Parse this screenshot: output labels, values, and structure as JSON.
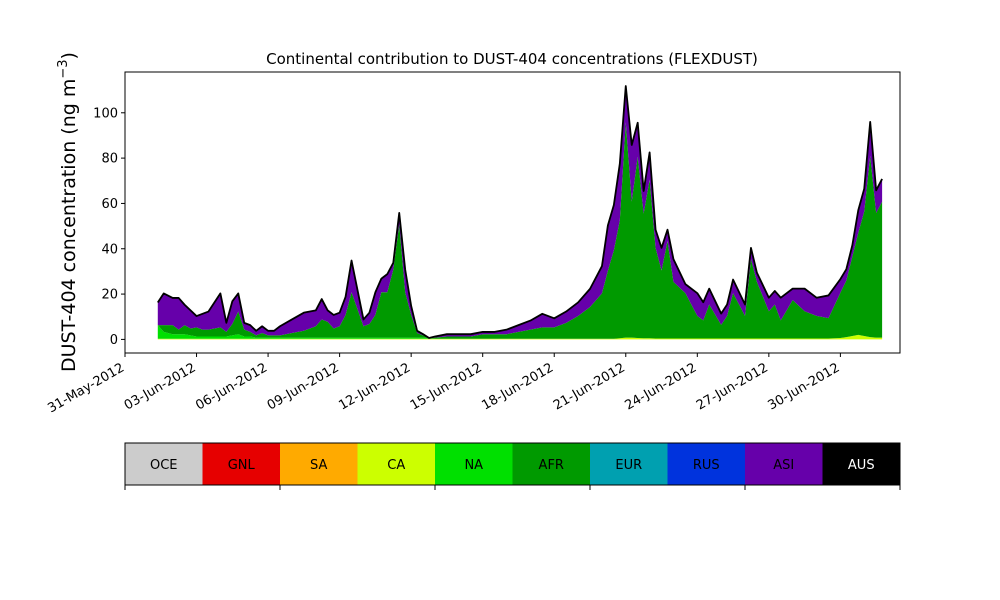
{
  "chart_data": {
    "type": "area",
    "title": "Continental contribution to DUST-404 concentrations (FLEXDUST)",
    "ylabel": "DUST-404 concentration (ng m",
    "ylabel_exponent": "−3",
    "ylabel_close": ")",
    "xlabel": "",
    "x_range": [
      "2012-05-31T00:00",
      "2012-07-02T12:00"
    ],
    "ylim": [
      -6,
      118
    ],
    "yticks": [
      0,
      20,
      40,
      60,
      80,
      100
    ],
    "x_ticks": [
      {
        "label": "31-May-2012",
        "date": "2012-05-31"
      },
      {
        "label": "03-Jun-2012",
        "date": "2012-06-03"
      },
      {
        "label": "06-Jun-2012",
        "date": "2012-06-06"
      },
      {
        "label": "09-Jun-2012",
        "date": "2012-06-09"
      },
      {
        "label": "12-Jun-2012",
        "date": "2012-06-12"
      },
      {
        "label": "15-Jun-2012",
        "date": "2012-06-15"
      },
      {
        "label": "18-Jun-2012",
        "date": "2012-06-18"
      },
      {
        "label": "21-Jun-2012",
        "date": "2012-06-21"
      },
      {
        "label": "24-Jun-2012",
        "date": "2012-06-24"
      },
      {
        "label": "27-Jun-2012",
        "date": "2012-06-27"
      },
      {
        "label": "30-Jun-2012",
        "date": "2012-06-30"
      }
    ],
    "grid": false,
    "stacking": "cumulative (bottom to top: OCE, GNL, SA, CA, NA, AFR, EUR, RUS, ASI, AUS)",
    "x": [
      "2012-06-01T09:00",
      "2012-06-01T15:00",
      "2012-06-02T00:00",
      "2012-06-02T06:00",
      "2012-06-02T12:00",
      "2012-06-02T18:00",
      "2012-06-03T00:00",
      "2012-06-03T06:00",
      "2012-06-03T12:00",
      "2012-06-04T00:00",
      "2012-06-04T06:00",
      "2012-06-04T12:00",
      "2012-06-04T18:00",
      "2012-06-05T00:00",
      "2012-06-05T06:00",
      "2012-06-05T12:00",
      "2012-06-05T18:00",
      "2012-06-06T00:00",
      "2012-06-06T06:00",
      "2012-06-06T12:00",
      "2012-06-07T00:00",
      "2012-06-07T12:00",
      "2012-06-08T00:00",
      "2012-06-08T06:00",
      "2012-06-08T12:00",
      "2012-06-08T18:00",
      "2012-06-09T00:00",
      "2012-06-09T06:00",
      "2012-06-09T12:00",
      "2012-06-10T00:00",
      "2012-06-10T06:00",
      "2012-06-10T12:00",
      "2012-06-10T18:00",
      "2012-06-11T00:00",
      "2012-06-11T06:00",
      "2012-06-11T12:00",
      "2012-06-11T18:00",
      "2012-06-12T00:00",
      "2012-06-12T06:00",
      "2012-06-12T12:00",
      "2012-06-12T18:00",
      "2012-06-13T00:00",
      "2012-06-13T12:00",
      "2012-06-14T00:00",
      "2012-06-14T12:00",
      "2012-06-15T00:00",
      "2012-06-15T12:00",
      "2012-06-16T00:00",
      "2012-06-16T12:00",
      "2012-06-17T00:00",
      "2012-06-17T12:00",
      "2012-06-18T00:00",
      "2012-06-18T12:00",
      "2012-06-19T00:00",
      "2012-06-19T12:00",
      "2012-06-19T18:00",
      "2012-06-20T00:00",
      "2012-06-20T06:00",
      "2012-06-20T12:00",
      "2012-06-20T18:00",
      "2012-06-21T00:00",
      "2012-06-21T06:00",
      "2012-06-21T12:00",
      "2012-06-21T18:00",
      "2012-06-22T00:00",
      "2012-06-22T06:00",
      "2012-06-22T12:00",
      "2012-06-22T18:00",
      "2012-06-23T00:00",
      "2012-06-23T12:00",
      "2012-06-24T00:00",
      "2012-06-24T06:00",
      "2012-06-24T12:00",
      "2012-06-25T00:00",
      "2012-06-25T06:00",
      "2012-06-25T12:00",
      "2012-06-26T00:00",
      "2012-06-26T06:00",
      "2012-06-26T12:00",
      "2012-06-27T00:00",
      "2012-06-27T06:00",
      "2012-06-27T12:00",
      "2012-06-28T00:00",
      "2012-06-28T12:00",
      "2012-06-29T00:00",
      "2012-06-29T12:00",
      "2012-06-30T00:00",
      "2012-06-30T06:00",
      "2012-06-30T12:00",
      "2012-06-30T18:00",
      "2012-07-01T00:00",
      "2012-07-01T06:00",
      "2012-07-01T12:00",
      "2012-07-01T18:00"
    ],
    "series": [
      {
        "name": "OCE",
        "color": "#cccccc",
        "values": [
          0,
          0,
          0,
          0,
          0,
          0,
          0,
          0,
          0,
          0,
          0,
          0,
          0,
          0,
          0,
          0,
          0,
          0,
          0,
          0,
          0,
          0,
          0,
          0,
          0,
          0,
          0,
          0,
          0,
          0,
          0,
          0,
          0,
          0,
          0,
          0,
          0,
          0,
          0,
          0,
          0,
          0,
          0,
          0,
          0,
          0,
          0,
          0,
          0,
          0,
          0,
          0,
          0,
          0,
          0,
          0,
          0,
          0,
          0,
          0,
          0,
          0,
          0,
          0,
          0,
          0,
          0,
          0,
          0,
          0,
          0,
          0,
          0,
          0,
          0,
          0,
          0,
          0,
          0,
          0,
          0,
          0,
          0,
          0,
          0,
          0,
          0,
          0,
          0,
          0,
          0,
          0,
          0,
          0
        ]
      },
      {
        "name": "GNL",
        "color": "#e60000",
        "values": [
          0,
          0,
          0,
          0,
          0,
          0,
          0,
          0,
          0,
          0,
          0,
          0,
          0,
          0,
          0,
          0,
          0,
          0,
          0,
          0,
          0,
          0,
          0,
          0,
          0,
          0,
          0,
          0,
          0,
          0,
          0,
          0,
          0,
          0,
          0,
          0,
          0,
          0,
          0,
          0,
          0,
          0,
          0,
          0,
          0,
          0,
          0,
          0,
          0,
          0,
          0,
          0,
          0,
          0,
          0,
          0,
          0,
          0,
          0,
          0,
          0,
          0,
          0,
          0,
          0,
          0,
          0,
          0,
          0,
          0,
          0,
          0,
          0,
          0,
          0,
          0,
          0,
          0,
          0,
          0,
          0,
          0,
          0,
          0,
          0,
          0,
          0,
          0,
          0,
          0,
          0,
          0,
          0,
          0
        ]
      },
      {
        "name": "SA",
        "color": "#ffaa00",
        "values": [
          0,
          0,
          0,
          0,
          0,
          0,
          0,
          0,
          0,
          0,
          0,
          0,
          0,
          0,
          0,
          0,
          0,
          0,
          0,
          0,
          0,
          0,
          0,
          0,
          0,
          0,
          0,
          0,
          0,
          0,
          0,
          0,
          0,
          0,
          0,
          0,
          0,
          0,
          0,
          0,
          0,
          0,
          0,
          0,
          0,
          0,
          0,
          0,
          0,
          0,
          0,
          0,
          0,
          0,
          0,
          0,
          0,
          0,
          0,
          0,
          0,
          0,
          0,
          0,
          0,
          0,
          0,
          0,
          0,
          0,
          0,
          0,
          0,
          0,
          0,
          0,
          0,
          0,
          0,
          0,
          0,
          0,
          0,
          0,
          0,
          0,
          0,
          0,
          0,
          0,
          0,
          0,
          0,
          0
        ]
      },
      {
        "name": "CA",
        "color": "#ccff00",
        "values": [
          0.3,
          0.3,
          0.3,
          0.3,
          0.3,
          0.3,
          0.3,
          0.3,
          0.3,
          0.3,
          0.3,
          0.3,
          0.3,
          0.3,
          0.3,
          0.3,
          0.3,
          0.3,
          0.3,
          0.3,
          0.3,
          0.3,
          0.3,
          0.3,
          0.3,
          0.3,
          0.3,
          0.3,
          0.3,
          0.3,
          0.3,
          0.3,
          0.3,
          0.3,
          0.3,
          0.3,
          0.3,
          0.3,
          0.3,
          0.3,
          0.3,
          0.3,
          0.3,
          0.3,
          0.3,
          0.3,
          0.3,
          0.3,
          0.3,
          0.3,
          0.3,
          0.3,
          0.3,
          0.3,
          0.3,
          0.3,
          0.3,
          0.3,
          0.3,
          0.5,
          0.8,
          0.8,
          0.6,
          0.5,
          0.5,
          0.4,
          0.4,
          0.4,
          0.4,
          0.4,
          0.4,
          0.4,
          0.4,
          0.4,
          0.4,
          0.4,
          0.4,
          0.4,
          0.4,
          0.4,
          0.4,
          0.4,
          0.4,
          0.4,
          0.4,
          0.4,
          0.6,
          1.0,
          1.5,
          2.0,
          1.5,
          1.0,
          0.8,
          0.8
        ]
      },
      {
        "name": "NA",
        "color": "#00e000",
        "values": [
          6,
          3,
          2,
          2,
          2,
          1.5,
          1,
          1,
          1,
          1,
          1,
          1.5,
          2,
          1,
          1,
          0.5,
          0.5,
          0.5,
          0.5,
          0.5,
          0.5,
          0.5,
          0.5,
          0.5,
          0.5,
          0.5,
          0.5,
          0.5,
          0.5,
          0.5,
          0.5,
          0.5,
          0.5,
          0.5,
          0.5,
          0.5,
          0.5,
          0.5,
          0.5,
          0.5,
          0.3,
          0,
          0,
          0,
          0,
          0,
          0,
          0,
          0,
          0,
          0,
          0,
          0,
          0,
          0,
          0,
          0,
          0,
          0,
          0,
          0,
          0,
          0,
          0,
          0,
          0,
          0,
          0,
          0,
          0,
          0,
          0,
          0,
          0,
          0,
          0,
          0,
          0,
          0,
          0,
          0,
          0,
          0,
          0,
          0,
          0,
          0,
          0,
          0,
          0,
          0,
          0,
          0,
          0
        ]
      },
      {
        "name": "AFR",
        "color": "#009a00",
        "values": [
          0,
          3,
          4,
          2,
          4,
          3,
          4,
          3,
          3,
          4,
          2,
          5,
          10,
          3,
          2,
          1,
          2,
          1,
          1,
          1,
          2,
          3,
          5,
          8,
          7,
          4,
          5,
          10,
          20,
          5,
          6,
          10,
          20,
          20,
          30,
          50,
          20,
          10,
          2,
          1,
          0,
          0.5,
          1,
          1,
          1,
          2,
          2,
          2,
          3,
          4,
          5,
          5,
          7,
          10,
          14,
          17,
          20,
          30,
          39,
          52,
          95,
          60,
          80,
          55,
          70,
          40,
          30,
          43,
          25,
          20,
          10,
          8,
          15,
          6,
          10,
          20,
          10,
          35,
          25,
          12,
          15,
          8,
          17,
          12,
          10,
          9,
          20,
          25,
          35,
          45,
          55,
          80,
          55,
          60
        ]
      },
      {
        "name": "EUR",
        "color": "#00a0b0",
        "values": [
          0,
          0,
          0,
          0,
          0,
          0,
          0,
          0,
          0,
          0,
          0,
          0,
          0,
          0,
          0,
          0,
          0,
          0,
          0,
          0,
          0,
          0,
          0,
          0,
          0,
          0,
          0,
          0,
          0,
          0,
          0,
          0,
          0,
          0,
          0,
          0,
          0,
          0,
          0,
          0,
          0,
          0,
          0,
          0,
          0,
          0,
          0,
          0,
          0,
          0,
          0,
          0,
          0,
          0,
          0,
          0,
          0,
          0,
          0,
          0,
          0,
          0,
          0,
          0,
          0,
          0,
          0,
          0,
          0,
          0,
          0,
          0,
          0,
          0,
          0,
          0,
          0,
          0,
          0,
          0,
          0,
          0,
          0,
          0,
          0,
          0,
          0,
          0,
          0,
          0,
          0,
          0,
          0,
          0
        ]
      },
      {
        "name": "RUS",
        "color": "#0033dd",
        "values": [
          0,
          0,
          0,
          0,
          0,
          0,
          0,
          0,
          0,
          0,
          0,
          0,
          0,
          0,
          0,
          0,
          0,
          0,
          0,
          0,
          0,
          0,
          0,
          0,
          0,
          0,
          0,
          0,
          0,
          0,
          0,
          0,
          0,
          0,
          0,
          0,
          0,
          0,
          0,
          0,
          0,
          0,
          0,
          0,
          0,
          0,
          0,
          0,
          0,
          0,
          0,
          0,
          0,
          0,
          0,
          0,
          0,
          0,
          0,
          0,
          0,
          0,
          0,
          0,
          0,
          0,
          0,
          0,
          0,
          0,
          0,
          0,
          0,
          0,
          0,
          0,
          0,
          0,
          0,
          0,
          0,
          0,
          0,
          0,
          0,
          0,
          0,
          0,
          0,
          0,
          0,
          0,
          0,
          0
        ]
      },
      {
        "name": "ASI",
        "color": "#6600aa",
        "values": [
          10,
          14,
          12,
          14,
          9,
          8,
          5,
          7,
          8,
          15,
          4,
          10,
          8,
          3,
          3,
          2,
          3,
          2,
          2,
          4,
          6,
          8,
          7,
          9,
          5,
          6,
          6,
          8,
          14,
          3,
          5,
          10,
          6,
          8,
          3,
          5,
          10,
          4,
          1,
          0.5,
          0,
          0.5,
          1,
          1,
          1,
          1,
          1,
          2,
          3,
          4,
          6,
          4,
          5,
          6,
          8,
          10,
          12,
          20,
          20,
          25,
          16,
          25,
          15,
          10,
          12,
          8,
          10,
          5,
          10,
          4,
          10,
          8,
          7,
          5,
          5,
          6,
          5,
          5,
          4,
          6,
          6,
          10,
          5,
          10,
          8,
          10,
          6,
          5,
          5,
          10,
          10,
          15,
          10,
          10
        ]
      },
      {
        "name": "AUS",
        "color": "#000000",
        "values": [
          0,
          0,
          0,
          0,
          0,
          0,
          0,
          0,
          0,
          0,
          0,
          0,
          0,
          0,
          0,
          0,
          0,
          0,
          0,
          0,
          0,
          0,
          0,
          0,
          0,
          0,
          0,
          0,
          0,
          0,
          0,
          0,
          0,
          0,
          0,
          0,
          0,
          0,
          0,
          0,
          0,
          0,
          0,
          0,
          0,
          0,
          0,
          0,
          0,
          0,
          0,
          0,
          0,
          0,
          0,
          0,
          0,
          0,
          0,
          0,
          0,
          0,
          0,
          0,
          0,
          0,
          0,
          0,
          0,
          0,
          0,
          0,
          0,
          0,
          0,
          0,
          0,
          0,
          0,
          0,
          0,
          0,
          0,
          0,
          0,
          0,
          0,
          0,
          0,
          0,
          0,
          0,
          0,
          0
        ]
      }
    ],
    "legend": {
      "placement": "bottom",
      "items": [
        {
          "label": "OCE",
          "color": "#cccccc",
          "text_color": "#000000"
        },
        {
          "label": "GNL",
          "color": "#e60000",
          "text_color": "#000000"
        },
        {
          "label": "SA",
          "color": "#ffaa00",
          "text_color": "#000000"
        },
        {
          "label": "CA",
          "color": "#ccff00",
          "text_color": "#000000"
        },
        {
          "label": "NA",
          "color": "#00e000",
          "text_color": "#000000"
        },
        {
          "label": "AFR",
          "color": "#009a00",
          "text_color": "#000000"
        },
        {
          "label": "EUR",
          "color": "#00a0b0",
          "text_color": "#000000"
        },
        {
          "label": "RUS",
          "color": "#0033dd",
          "text_color": "#000000"
        },
        {
          "label": "ASI",
          "color": "#6600aa",
          "text_color": "#000000"
        },
        {
          "label": "AUS",
          "color": "#000000",
          "text_color": "#ffffff"
        }
      ]
    }
  }
}
